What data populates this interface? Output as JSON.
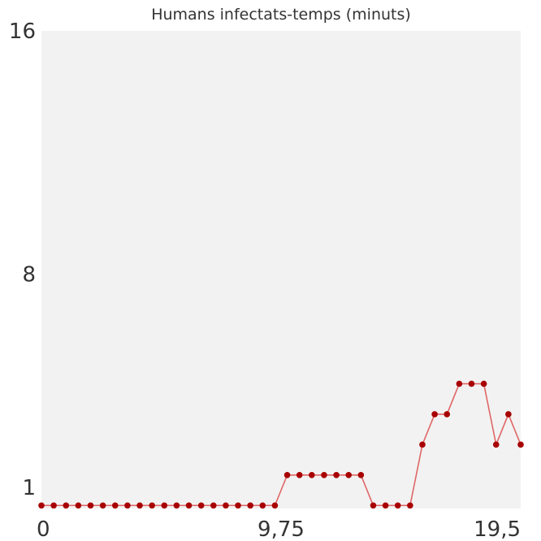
{
  "chart_data": {
    "type": "line",
    "title": "Humans infectats-temps (minuts)",
    "xlabel": "",
    "ylabel": "",
    "xlim": [
      0,
      19.5
    ],
    "ylim": [
      0.3,
      16
    ],
    "x_ticks": [
      "0",
      "9,75",
      "19,5"
    ],
    "y_ticks": [
      "1",
      "8",
      "16"
    ],
    "y_tick_values": [
      1,
      8,
      16
    ],
    "grid": false,
    "background": "#f2f2f2",
    "series": [
      {
        "color": "#a80000",
        "line_color": "#e06666",
        "x": [
          0,
          0.5,
          1,
          1.5,
          2,
          2.5,
          3,
          3.5,
          4,
          4.5,
          5,
          5.5,
          6,
          6.5,
          7,
          7.5,
          8,
          8.5,
          9,
          9.5,
          10,
          10.5,
          11,
          11.5,
          12,
          12.5,
          13,
          13.5,
          14,
          14.5,
          15,
          15.5,
          16,
          16.5,
          17,
          17.5,
          18,
          18.5,
          19,
          19.5
        ],
        "y": [
          0.4,
          0.4,
          0.4,
          0.4,
          0.4,
          0.4,
          0.4,
          0.4,
          0.4,
          0.4,
          0.4,
          0.4,
          0.4,
          0.4,
          0.4,
          0.4,
          0.4,
          0.4,
          0.4,
          0.4,
          1.4,
          1.4,
          1.4,
          1.4,
          1.4,
          1.4,
          1.4,
          0.4,
          0.4,
          0.4,
          0.4,
          2.4,
          3.4,
          3.4,
          4.4,
          4.4,
          4.4,
          2.4,
          3.4,
          2.4
        ]
      }
    ]
  }
}
